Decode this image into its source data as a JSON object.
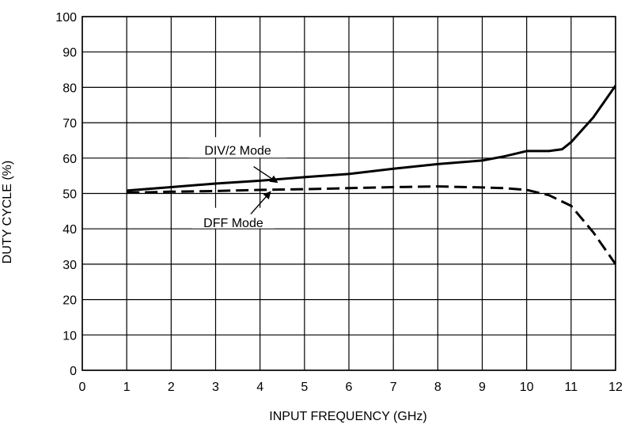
{
  "chart_data": {
    "type": "line",
    "xlabel": "INPUT FREQUENCY (GHz)",
    "ylabel": "DUTY CYCLE (%)",
    "xlim": [
      0,
      12
    ],
    "ylim": [
      0,
      100
    ],
    "xticks": [
      "0",
      "1",
      "2",
      "3",
      "4",
      "5",
      "6",
      "7",
      "8",
      "9",
      "10",
      "11",
      "12"
    ],
    "yticks": [
      "0",
      "10",
      "20",
      "30",
      "40",
      "50",
      "60",
      "70",
      "80",
      "90",
      "100"
    ],
    "grid": true,
    "series": [
      {
        "name": "DIV/2 Mode",
        "style": "solid",
        "x": [
          1,
          2,
          3,
          4,
          5,
          6,
          7,
          8,
          9,
          9.5,
          10,
          10.5,
          10.8,
          11,
          11.5,
          12
        ],
        "y": [
          50.8,
          51.8,
          52.8,
          53.6,
          54.6,
          55.5,
          57,
          58.3,
          59.3,
          60.5,
          62,
          62,
          62.5,
          64.5,
          71.5,
          80.5
        ]
      },
      {
        "name": "DFF Mode",
        "style": "dashed",
        "x": [
          1,
          2,
          3,
          4,
          5,
          6,
          7,
          8,
          9,
          9.5,
          10,
          10.5,
          11,
          11.5,
          12
        ],
        "y": [
          50.2,
          50.5,
          50.7,
          51,
          51.2,
          51.5,
          51.8,
          52,
          51.7,
          51.5,
          51,
          49.5,
          46.5,
          39,
          30
        ]
      }
    ],
    "annotations": [
      {
        "text": "DIV/2 Mode",
        "target_series": "DIV/2 Mode",
        "x": 3.5,
        "y": 61
      },
      {
        "text": "DFF Mode",
        "target_series": "DFF Mode",
        "x": 3.4,
        "y": 40
      }
    ],
    "colors": {
      "line": "#000000",
      "grid": "#000000",
      "background": "#ffffff"
    }
  }
}
